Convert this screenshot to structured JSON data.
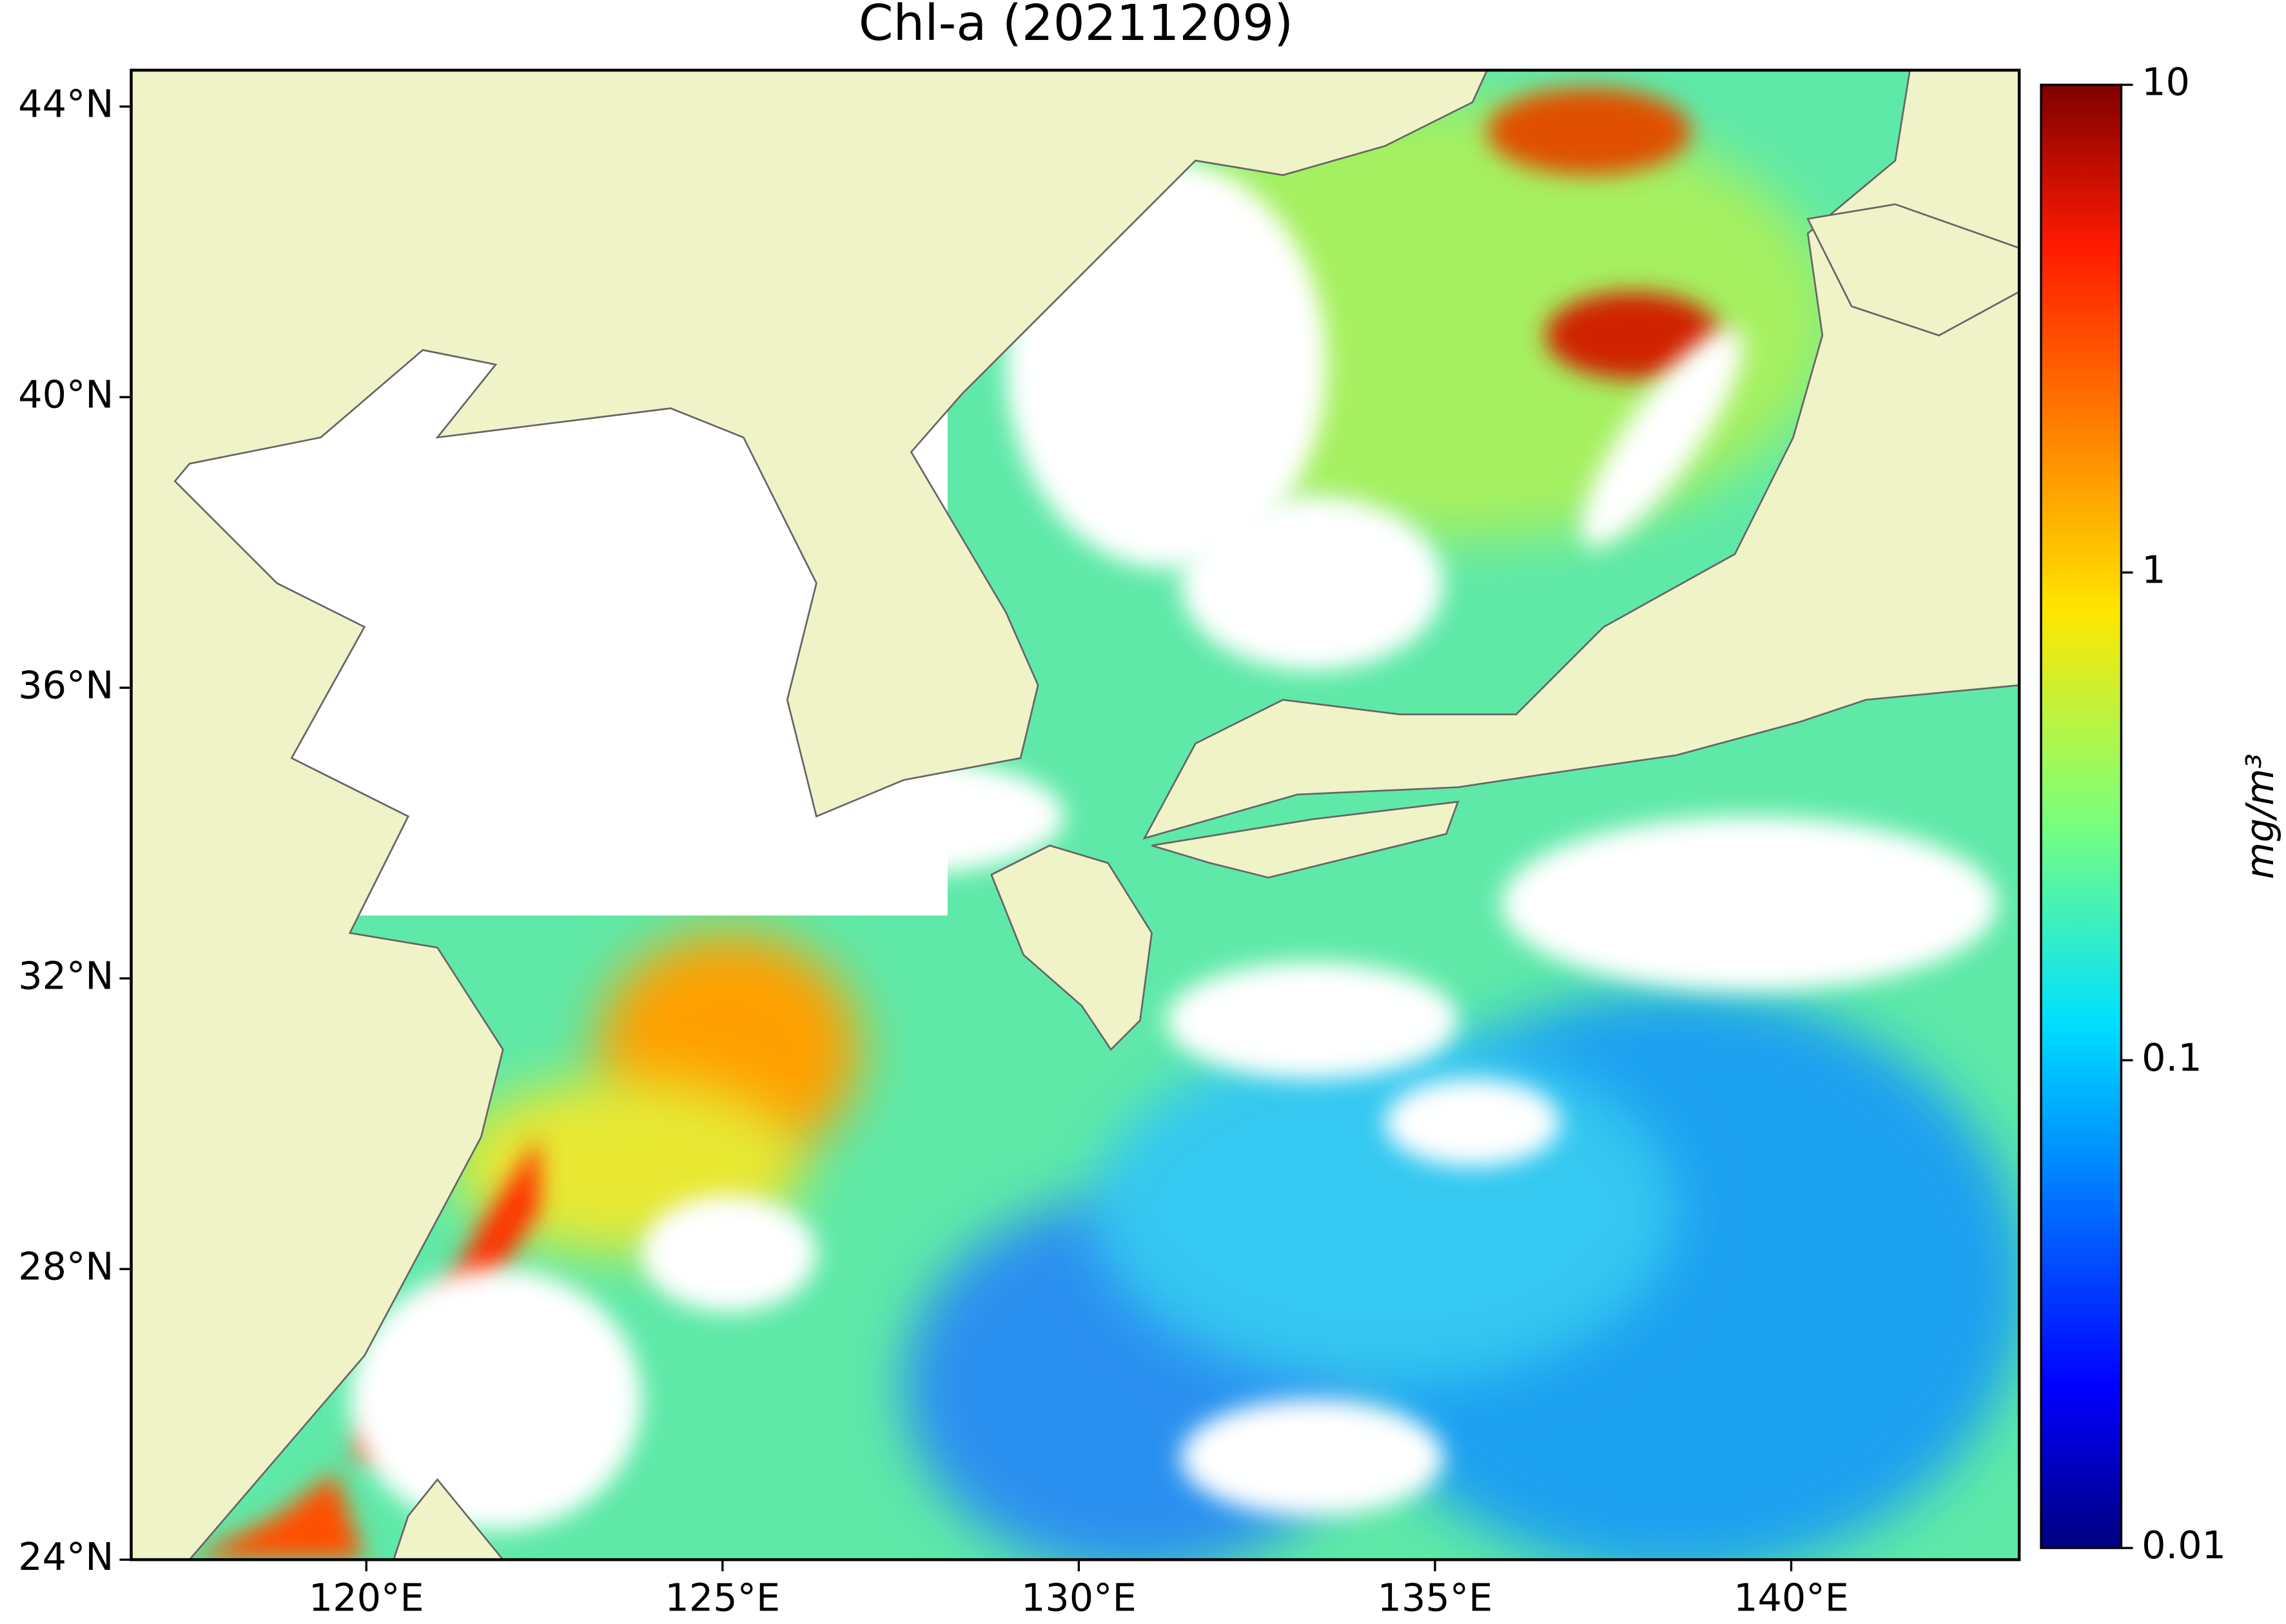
{
  "chart_data": {
    "type": "map",
    "title": "Chl-a (20211209)",
    "xlim": [
      116.7,
      143.2
    ],
    "ylim": [
      24,
      44.5
    ],
    "xticks": [
      {
        "value": 120,
        "label": "120°E"
      },
      {
        "value": 125,
        "label": "125°E"
      },
      {
        "value": 130,
        "label": "130°E"
      },
      {
        "value": 135,
        "label": "135°E"
      },
      {
        "value": 140,
        "label": "140°E"
      }
    ],
    "yticks": [
      {
        "value": 24,
        "label": "24°N"
      },
      {
        "value": 28,
        "label": "28°N"
      },
      {
        "value": 32,
        "label": "32°N"
      },
      {
        "value": 36,
        "label": "36°N"
      },
      {
        "value": 40,
        "label": "40°N"
      },
      {
        "value": 44,
        "label": "44°N"
      }
    ],
    "colorbar": {
      "label": "mg/m³",
      "scale": "log",
      "lim": [
        0.01,
        10
      ],
      "ticks": [
        0.01,
        0.1,
        1,
        10
      ],
      "colormap": "jet"
    }
  }
}
